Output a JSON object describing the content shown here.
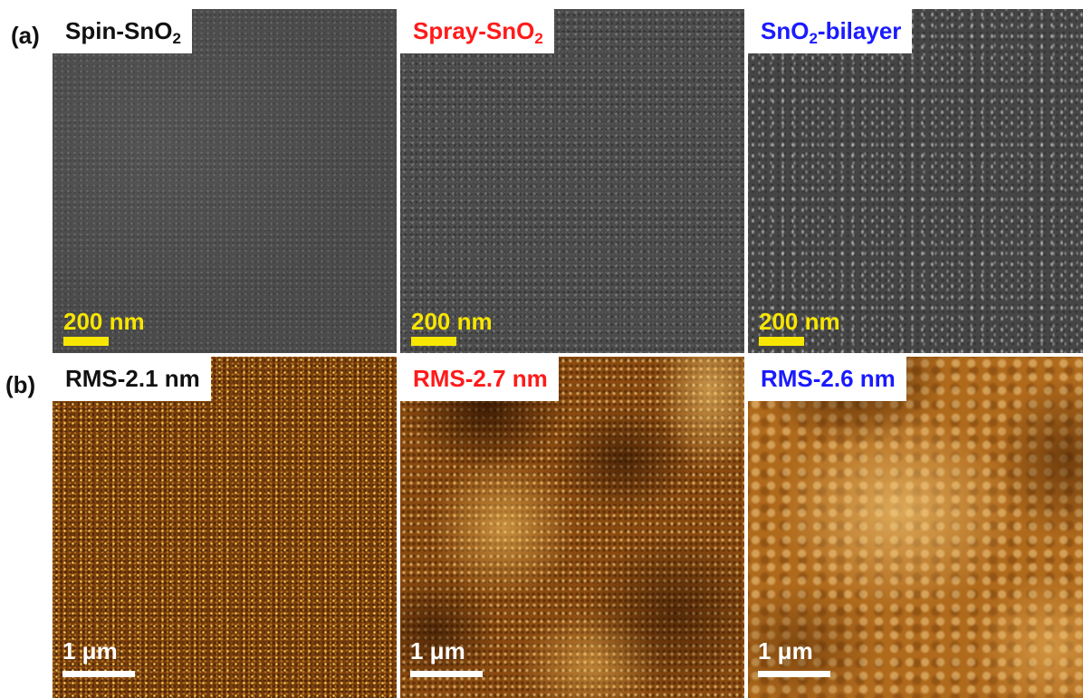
{
  "row_labels": {
    "a": "(a)",
    "b": "(b)"
  },
  "sem": [
    {
      "label_main": "Spin-SnO",
      "label_sub": "2",
      "label_suffix": "",
      "label_color": "#111111",
      "scale_text": "200 nm"
    },
    {
      "label_main": "Spray-SnO",
      "label_sub": "2",
      "label_suffix": "",
      "label_color": "#ff1a1a",
      "scale_text": "200 nm"
    },
    {
      "label_main": "SnO",
      "label_sub": "2",
      "label_suffix": "-bilayer",
      "label_color": "#1a1aff",
      "scale_text": "200 nm"
    }
  ],
  "afm": [
    {
      "label": "RMS-2.1 nm",
      "label_color": "#111111",
      "scale_text": "1 μm"
    },
    {
      "label": "RMS-2.7 nm",
      "label_color": "#ff1a1a",
      "scale_text": "1 μm"
    },
    {
      "label": "RMS-2.6 nm",
      "label_color": "#1a1aff",
      "scale_text": "1 μm"
    }
  ],
  "colors": {
    "scale_bar_sem": "#f7e600",
    "scale_bar_afm": "#ffffff"
  }
}
